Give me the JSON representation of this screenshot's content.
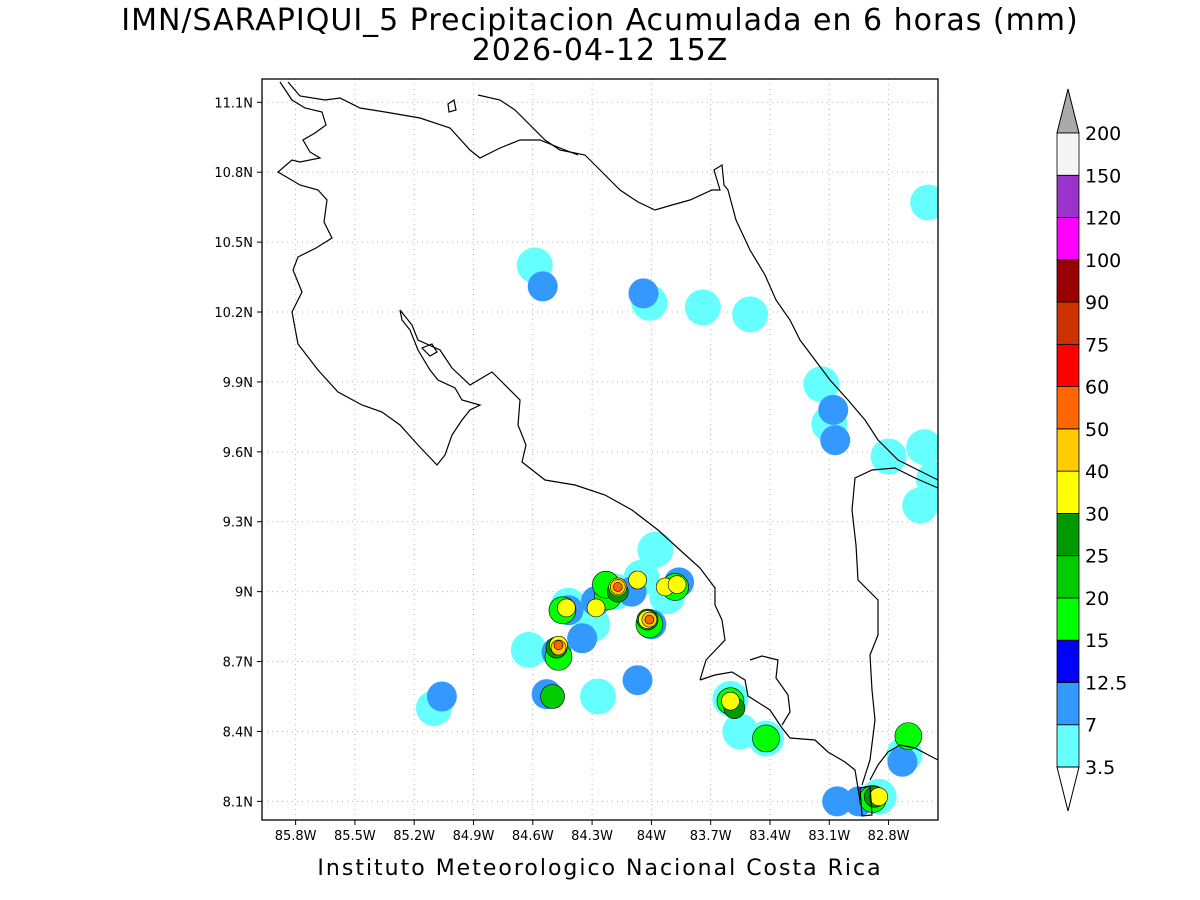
{
  "title": {
    "line1": "IMN/SARAPIQUI_5 Precipitacion Acumulada en 6 horas (mm)",
    "line2": "2026-04-12 15Z"
  },
  "footer": "Instituto Meteorologico Nacional Costa Rica",
  "map": {
    "lon_range": [
      -85.97,
      -82.55
    ],
    "lat_range": [
      8.02,
      11.2
    ],
    "x_ticks": [
      {
        "value": -85.8,
        "label": "85.8W"
      },
      {
        "value": -85.5,
        "label": "85.5W"
      },
      {
        "value": -85.2,
        "label": "85.2W"
      },
      {
        "value": -84.9,
        "label": "84.9W"
      },
      {
        "value": -84.6,
        "label": "84.6W"
      },
      {
        "value": -84.3,
        "label": "84.3W"
      },
      {
        "value": -84.0,
        "label": "84W"
      },
      {
        "value": -83.7,
        "label": "83.7W"
      },
      {
        "value": -83.4,
        "label": "83.4W"
      },
      {
        "value": -83.1,
        "label": "83.1W"
      },
      {
        "value": -82.8,
        "label": "82.8W"
      }
    ],
    "y_ticks": [
      {
        "value": 8.1,
        "label": "8.1N"
      },
      {
        "value": 8.4,
        "label": "8.4N"
      },
      {
        "value": 8.7,
        "label": "8.7N"
      },
      {
        "value": 9.0,
        "label": "9N"
      },
      {
        "value": 9.3,
        "label": "9.3N"
      },
      {
        "value": 9.6,
        "label": "9.6N"
      },
      {
        "value": 9.9,
        "label": "9.9N"
      },
      {
        "value": 10.2,
        "label": "10.2N"
      },
      {
        "value": 10.5,
        "label": "10.5N"
      },
      {
        "value": 10.8,
        "label": "10.8N"
      },
      {
        "value": 11.1,
        "label": "11.1N"
      }
    ],
    "grid": "dotted"
  },
  "colorbar": {
    "labels": [
      "3.5",
      "7",
      "12.5",
      "15",
      "20",
      "25",
      "30",
      "40",
      "50",
      "60",
      "75",
      "90",
      "100",
      "120",
      "150",
      "200"
    ],
    "colors": [
      "#66ffff",
      "#3399ff",
      "#0000ff",
      "#00ff00",
      "#00cc00",
      "#009900",
      "#ffff00",
      "#ffcc00",
      "#ff6600",
      "#ff0000",
      "#cc3300",
      "#990000",
      "#ff00ff",
      "#9933cc",
      "#f5f5f5"
    ],
    "over_color": "#aaaaaa",
    "under_color": "#ffffff"
  },
  "precip_cells": [
    {
      "lon": -84.3,
      "lat": 8.86,
      "level": 0
    },
    {
      "lon": -84.42,
      "lat": 8.94,
      "level": 0
    },
    {
      "lon": -84.18,
      "lat": 9.0,
      "level": 0
    },
    {
      "lon": -83.92,
      "lat": 8.98,
      "level": 0
    },
    {
      "lon": -84.05,
      "lat": 9.06,
      "level": 0
    },
    {
      "lon": -84.28,
      "lat": 8.96,
      "level": 1
    },
    {
      "lon": -84.42,
      "lat": 8.92,
      "level": 1
    },
    {
      "lon": -84.48,
      "lat": 8.74,
      "level": 1
    },
    {
      "lon": -84.53,
      "lat": 8.56,
      "level": 1
    },
    {
      "lon": -84.35,
      "lat": 8.8,
      "level": 1
    },
    {
      "lon": -84.0,
      "lat": 8.86,
      "level": 1
    },
    {
      "lon": -84.1,
      "lat": 9.0,
      "level": 1
    },
    {
      "lon": -83.86,
      "lat": 9.04,
      "level": 1
    },
    {
      "lon": -84.07,
      "lat": 8.62,
      "level": 1
    },
    {
      "lon": -84.47,
      "lat": 8.72,
      "level": 3
    },
    {
      "lon": -84.45,
      "lat": 8.92,
      "level": 3
    },
    {
      "lon": -84.22,
      "lat": 8.98,
      "level": 3
    },
    {
      "lon": -84.01,
      "lat": 8.86,
      "level": 3
    },
    {
      "lon": -83.88,
      "lat": 9.02,
      "level": 3
    },
    {
      "lon": -84.23,
      "lat": 9.03,
      "level": 3
    },
    {
      "lon": -84.5,
      "lat": 8.55,
      "level": 4
    },
    {
      "lon": -84.48,
      "lat": 8.76,
      "level": 5
    },
    {
      "lon": -84.17,
      "lat": 9.0,
      "level": 5
    },
    {
      "lon": -84.02,
      "lat": 8.88,
      "level": 5
    },
    {
      "lon": -84.47,
      "lat": 8.77,
      "level": 6
    },
    {
      "lon": -84.17,
      "lat": 9.02,
      "level": 6
    },
    {
      "lon": -84.02,
      "lat": 8.88,
      "level": 6
    },
    {
      "lon": -84.43,
      "lat": 8.93,
      "level": 6
    },
    {
      "lon": -84.28,
      "lat": 8.93,
      "level": 6
    },
    {
      "lon": -83.93,
      "lat": 9.02,
      "level": 6
    },
    {
      "lon": -83.87,
      "lat": 9.03,
      "level": 6
    },
    {
      "lon": -84.07,
      "lat": 9.05,
      "level": 6
    },
    {
      "lon": -84.47,
      "lat": 8.76,
      "level": 7
    },
    {
      "lon": -84.17,
      "lat": 9.02,
      "level": 7
    },
    {
      "lon": -84.01,
      "lat": 8.88,
      "level": 7
    },
    {
      "lon": -84.47,
      "lat": 8.77,
      "level": 8
    },
    {
      "lon": -84.17,
      "lat": 9.02,
      "level": 8
    },
    {
      "lon": -84.01,
      "lat": 8.88,
      "level": 8
    },
    {
      "lon": -83.6,
      "lat": 8.54,
      "level": 0
    },
    {
      "lon": -83.6,
      "lat": 8.53,
      "level": 3
    },
    {
      "lon": -83.58,
      "lat": 8.5,
      "level": 5
    },
    {
      "lon": -83.6,
      "lat": 8.53,
      "level": 6
    },
    {
      "lon": -83.42,
      "lat": 8.37,
      "level": 0
    },
    {
      "lon": -83.42,
      "lat": 8.37,
      "level": 3
    },
    {
      "lon": -82.85,
      "lat": 8.12,
      "level": 0
    },
    {
      "lon": -82.95,
      "lat": 8.1,
      "level": 1
    },
    {
      "lon": -83.06,
      "lat": 8.1,
      "level": 1
    },
    {
      "lon": -82.88,
      "lat": 8.11,
      "level": 3
    },
    {
      "lon": -82.87,
      "lat": 8.12,
      "level": 5
    },
    {
      "lon": -82.85,
      "lat": 8.12,
      "level": 6
    },
    {
      "lon": -82.72,
      "lat": 8.3,
      "level": 0
    },
    {
      "lon": -82.73,
      "lat": 8.27,
      "level": 1
    },
    {
      "lon": -82.7,
      "lat": 8.38,
      "level": 3
    },
    {
      "lon": -83.55,
      "lat": 8.4,
      "level": 0
    },
    {
      "lon": -85.1,
      "lat": 8.5,
      "level": 0
    },
    {
      "lon": -85.06,
      "lat": 8.55,
      "level": 1
    },
    {
      "lon": -84.62,
      "lat": 8.75,
      "level": 0
    },
    {
      "lon": -84.27,
      "lat": 8.55,
      "level": 0
    },
    {
      "lon": -83.98,
      "lat": 9.18,
      "level": 0
    },
    {
      "lon": -84.59,
      "lat": 10.4,
      "level": 0
    },
    {
      "lon": -84.55,
      "lat": 10.31,
      "level": 1
    },
    {
      "lon": -84.01,
      "lat": 10.24,
      "level": 0
    },
    {
      "lon": -84.04,
      "lat": 10.28,
      "level": 1
    },
    {
      "lon": -83.5,
      "lat": 10.19,
      "level": 0
    },
    {
      "lon": -83.74,
      "lat": 10.22,
      "level": 0
    },
    {
      "lon": -83.14,
      "lat": 9.89,
      "level": 0
    },
    {
      "lon": -83.1,
      "lat": 9.72,
      "level": 0
    },
    {
      "lon": -83.07,
      "lat": 9.65,
      "level": 1
    },
    {
      "lon": -83.08,
      "lat": 9.78,
      "level": 1
    },
    {
      "lon": -82.8,
      "lat": 9.58,
      "level": 0
    },
    {
      "lon": -82.62,
      "lat": 9.62,
      "level": 0
    },
    {
      "lon": -82.57,
      "lat": 9.48,
      "level": 0
    },
    {
      "lon": -82.64,
      "lat": 9.37,
      "level": 0
    },
    {
      "lon": -82.6,
      "lat": 10.67,
      "level": 0
    }
  ]
}
